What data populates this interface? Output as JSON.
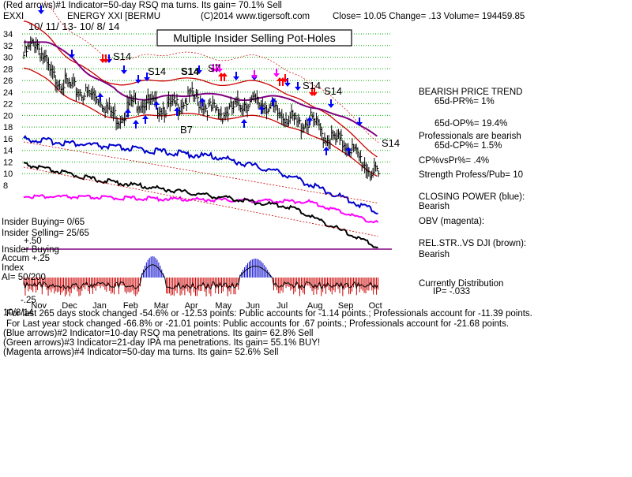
{
  "header": {
    "line1": "(Red arrows)#1 Indicator=50-day RSQ ma turns. Its gain= 70.1% Sell",
    "ticker": "EXXI",
    "company": "ENERGY XXI [BERMU",
    "copyright": "(C)2014 www.tigersoft.com",
    "quote": "Close=  10.05  Change= .13 Volume= 194459.85"
  },
  "chart_title": "Multiple Insider Selling Pot-Holes",
  "date_range": "10/ 11/ 13- 10/ 8/ 14",
  "signals": [
    "S14",
    "S14",
    "S14",
    "S7",
    "S14",
    "S14",
    "S14",
    "B7"
  ],
  "right_panel": {
    "trend": "BEARISH PRICE TREND",
    "pr": "65d-PR%= 1%",
    "op": "65d-OP%= 19.4%",
    "prof_bearish": "Professionals are bearish",
    "cp": "65d-CP%= 1.5%",
    "cpvspr": "CP%vsPr%=  .4%",
    "strength": "Strength Profess/Pub= 10",
    "closing_power": "CLOSING POWER (blue):",
    "closing_power_state": "Bearish",
    "obv": "OBV (magenta):",
    "relstr": "REL.STR..VS DJI (brown):",
    "relstr_state": "Bearish",
    "distribution": "Currently Distribution",
    "ip": "IP= -.033"
  },
  "left_panel": {
    "insider_buying_count": "Insider Buying= 0/65",
    "insider_selling_count": "Insider Selling= 25/65",
    "upper_val": "+.50",
    "insider_buying_label": "Insider Buying",
    "accum_label": "Accum  +.25",
    "index_label": "Index",
    "ai": "AI= 50/200",
    "lower_val": "-.25"
  },
  "footer": {
    "line1": "For last 265 days stock changed -54.6% or -12.53 points:  Public accounts for -1.14 points.;  Professionals account for -11.39 points.",
    "line1_prefix": "10/8/14",
    "line2": "For Last year stock changed -66.8% or -21.01 points:  Public accounts for  .67 points.;  Professionals account for -21.68 points.",
    "line3": "(Blue arrows)#2 Indicator=10-day RSQ ma penetrations. Its gain= 62.8% Sell",
    "line4": "(Green arrows)#3 Indicator=21-day IPA ma penetrations. Its gain= 55.1% BUY!",
    "line5": "(Magenta arrows)#4 Indicator=50-day ma turns. Its gain= 52.6% Sell"
  },
  "colors": {
    "price": "#000000",
    "bands": "#cc0000",
    "ma": "#800080",
    "closing_power": "#0000cc",
    "obv": "#ff00ff",
    "relstr": "#000000",
    "accum_pos": "#0000cc",
    "accum_neg": "#cc0000",
    "grid": "#00aa00",
    "arrow_red": "#ff0000",
    "arrow_blue": "#0000ff"
  },
  "chart_data": {
    "type": "line",
    "title": "Multiple Insider Selling Pot-Holes",
    "y_ticks": [
      34,
      32,
      30,
      28,
      26,
      24,
      22,
      20,
      18,
      16,
      14,
      12,
      10,
      8
    ],
    "ylim": [
      8,
      34
    ],
    "x_ticks": [
      "Nov",
      "Dec",
      "Jan",
      "Feb",
      "Mar",
      "Apr",
      "May",
      "Jun",
      "Jul",
      "Aug",
      "Sep",
      "Oct"
    ],
    "x_tick_positions": [
      0.5,
      1.5,
      2.5,
      3.5,
      4.5,
      5.5,
      6.5,
      7.5,
      8.5,
      9.5,
      10.5,
      11.5
    ],
    "x_unit": "months since 10/11/13",
    "xlim": [
      0,
      12
    ],
    "series": [
      {
        "name": "",
        "role": "price",
        "x": [
          0,
          0.4,
          0.9,
          1.4,
          1.9,
          2.4,
          2.8,
          3.1,
          3.5,
          4.0,
          4.5,
          5.0,
          5.5,
          6.0,
          6.5,
          7.0,
          7.5,
          7.9,
          8.3,
          8.6,
          9.0,
          9.4,
          9.8,
          10.2,
          10.6,
          11.0,
          11.3,
          11.5,
          11.6
        ],
        "values": [
          31.0,
          33.5,
          27.5,
          26.0,
          24.5,
          24.0,
          21.5,
          20.0,
          23.0,
          23.0,
          22.0,
          22.5,
          24.0,
          22.0,
          21.0,
          22.5,
          23.0,
          22.5,
          21.0,
          20.5,
          19.0,
          20.0,
          17.0,
          16.5,
          15.5,
          13.0,
          11.0,
          10.5,
          10.05
        ]
      }
    ]
  }
}
